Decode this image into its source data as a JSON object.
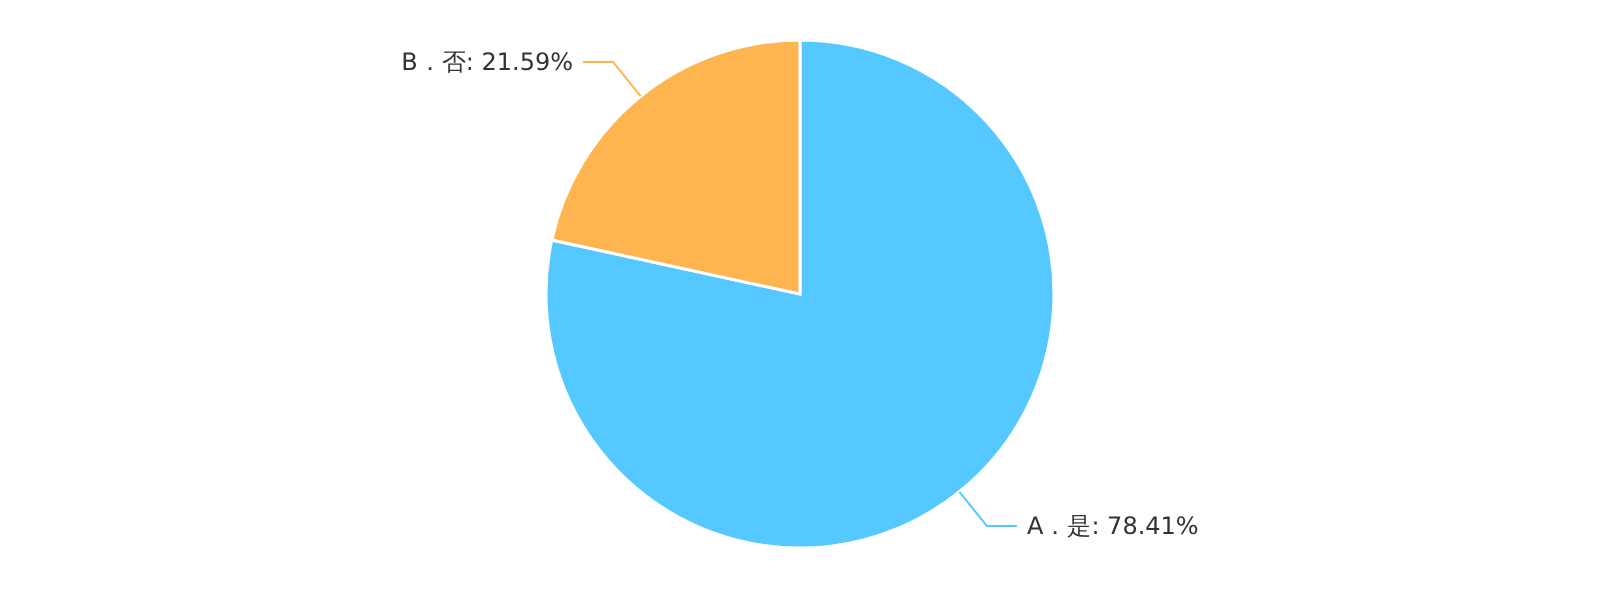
{
  "chart_data": {
    "type": "pie",
    "categories": [
      "A．是",
      "B．否"
    ],
    "values": [
      78.41,
      21.59
    ],
    "value_labels": [
      ": 78.41%",
      ": 21.59%"
    ],
    "colors": [
      "#55c8ff",
      "#ffb54f"
    ]
  }
}
